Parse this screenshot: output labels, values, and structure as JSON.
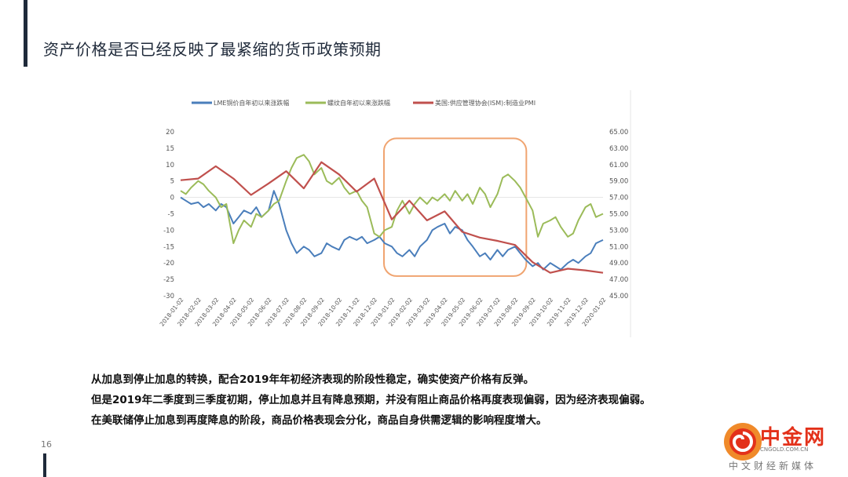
{
  "slide": {
    "title": "资产价格是否已经反映了最紧缩的货币政策预期",
    "page_number": "16",
    "bullets": [
      "从加息到停止加息的转换，配合2019年年初经济表现的阶段性稳定，确实使资产价格有反弹。",
      "但是2019年二季度到三季度初期，停止加息并且有降息预期，并没有阻止商品价格再度表现偏弱，因为经济表现偏弱。",
      "在美联储停止加息到再度降息的阶段，商品价格表现会分化，商品自身供需逻辑的影响程度增大。"
    ]
  },
  "logo": {
    "brand": "中金网",
    "url": "CNGOLD.COM.CN",
    "tagline": "中文财经新媒体",
    "color": "#e3311a"
  },
  "chart_data": {
    "type": "line",
    "legend": {
      "placement": "top",
      "items": [
        {
          "label": "LME铜价自年初以来涨跌幅",
          "color": "#4a7ebb"
        },
        {
          "label": "螺纹自年初以来涨跌幅",
          "color": "#9bbb59"
        },
        {
          "label": "美国:供应管理协会(ISM):制造业PMI",
          "color": "#c0504d"
        }
      ]
    },
    "y_left": {
      "min": -30,
      "max": 20,
      "ticks": [
        "20",
        "15",
        "10",
        "5",
        "0",
        "-5",
        "-10",
        "-15",
        "-20",
        "-25",
        "-30"
      ]
    },
    "y_right": {
      "min": 45,
      "max": 65,
      "ticks": [
        "65.00",
        "63.00",
        "61.00",
        "59.00",
        "57.00",
        "55.00",
        "53.00",
        "51.00",
        "49.00",
        "47.00",
        "45.00"
      ]
    },
    "x_categories": [
      "2018-01-02",
      "2018-02-02",
      "2018-03-02",
      "2018-04-02",
      "2018-05-02",
      "2018-06-02",
      "2018-07-02",
      "2018-08-02",
      "2018-09-02",
      "2018-10-02",
      "2018-11-02",
      "2018-12-02",
      "2019-01-02",
      "2019-02-02",
      "2019-03-02",
      "2019-04-02",
      "2019-05-02",
      "2019-06-02",
      "2019-07-02",
      "2019-08-02",
      "2019-09-02",
      "2019-10-02",
      "2019-11-02",
      "2019-12-02",
      "2020-01-02"
    ],
    "series": [
      {
        "name": "LME铜价自年初以来涨跌幅",
        "axis": "left",
        "color": "#4a7ebb",
        "x": [
          0,
          0.3,
          0.6,
          1.0,
          1.3,
          1.6,
          2.0,
          2.3,
          2.6,
          3.0,
          3.3,
          3.6,
          4.0,
          4.3,
          4.6,
          5.0,
          5.3,
          5.6,
          6.0,
          6.3,
          6.6,
          7.0,
          7.3,
          7.6,
          8.0,
          8.3,
          8.6,
          9.0,
          9.3,
          9.6,
          10.0,
          10.3,
          10.6,
          11.0,
          11.3,
          11.6,
          12.0,
          12.3,
          12.6,
          13.0,
          13.3,
          13.6,
          14.0,
          14.3,
          14.6,
          15.0,
          15.3,
          15.6,
          16.0,
          16.3,
          16.6,
          17.0,
          17.3,
          17.6,
          18.0,
          18.3,
          18.6,
          19.0,
          19.3,
          19.6,
          20.0,
          20.3,
          20.6,
          21.0,
          21.3,
          21.6,
          22.0,
          22.3,
          22.6,
          23.0,
          23.3,
          23.6,
          24.0
        ],
        "values": [
          0,
          -1,
          -2,
          -1.5,
          -3,
          -2,
          -4,
          -2,
          -3,
          -8,
          -6,
          -4,
          -5,
          -3,
          -6,
          -4,
          2,
          -2,
          -10,
          -14,
          -17,
          -15,
          -16,
          -18,
          -17,
          -14,
          -15,
          -16,
          -13,
          -12,
          -13,
          -12,
          -14,
          -13,
          -12,
          -14,
          -15,
          -17,
          -18,
          -16,
          -18,
          -15,
          -13,
          -10,
          -9,
          -8,
          -11,
          -9,
          -10,
          -13,
          -15,
          -18,
          -17,
          -19,
          -16,
          -18,
          -16,
          -15,
          -17,
          -19,
          -21,
          -20,
          -22,
          -20,
          -21,
          -22,
          -20,
          -19,
          -20,
          -18,
          -17,
          -14,
          -13
        ]
      },
      {
        "name": "螺纹自年初以来涨跌幅",
        "axis": "left",
        "color": "#9bbb59",
        "x": [
          0,
          0.3,
          0.6,
          1.0,
          1.3,
          1.6,
          2.0,
          2.3,
          2.6,
          3.0,
          3.3,
          3.6,
          4.0,
          4.3,
          4.6,
          5.0,
          5.3,
          5.6,
          6.0,
          6.3,
          6.6,
          7.0,
          7.3,
          7.6,
          8.0,
          8.3,
          8.6,
          9.0,
          9.3,
          9.6,
          10.0,
          10.3,
          10.6,
          11.0,
          11.3,
          11.6,
          12.0,
          12.3,
          12.6,
          13.0,
          13.3,
          13.6,
          14.0,
          14.3,
          14.6,
          15.0,
          15.3,
          15.6,
          16.0,
          16.3,
          16.6,
          17.0,
          17.3,
          17.6,
          18.0,
          18.3,
          18.6,
          19.0,
          19.3,
          19.6,
          20.0,
          20.3,
          20.6,
          21.0,
          21.3,
          21.6,
          22.0,
          22.3,
          22.6,
          23.0,
          23.3,
          23.6,
          24.0
        ],
        "values": [
          2,
          1,
          3,
          5,
          4,
          2,
          0,
          -3,
          -2,
          -14,
          -10,
          -7,
          -9,
          -5,
          -6,
          -4,
          -2,
          -1,
          5,
          9,
          12,
          13,
          11,
          7,
          9,
          5,
          4,
          6,
          3,
          1,
          2,
          -1,
          -3,
          -11,
          -12,
          -10,
          -9,
          -4,
          -1,
          -5,
          -2,
          0,
          -2,
          0,
          -1,
          1,
          -1,
          2,
          -1,
          1,
          -2,
          3,
          1,
          -3,
          1,
          6,
          7,
          5,
          3,
          0,
          -4,
          -12,
          -8,
          -7,
          -6,
          -9,
          -12,
          -11,
          -7,
          -3,
          -2,
          -6,
          -5
        ]
      },
      {
        "name": "美国:供应管理协会(ISM):制造业PMI",
        "axis": "right",
        "color": "#c0504d",
        "x": [
          0,
          1,
          2,
          3,
          4,
          5,
          6,
          7,
          8,
          9,
          10,
          11,
          12,
          13,
          14,
          15,
          16,
          17,
          18,
          19,
          20,
          21,
          22,
          23,
          24
        ],
        "values": [
          59.1,
          59.3,
          60.8,
          59.3,
          57.3,
          58.7,
          60.2,
          58.1,
          61.3,
          59.8,
          57.7,
          59.3,
          54.3,
          56.6,
          54.2,
          55.3,
          52.8,
          52.1,
          51.7,
          51.2,
          49.1,
          47.8,
          48.3,
          48.1,
          47.8
        ]
      }
    ],
    "highlight_box": {
      "from": "2019-01-02",
      "to": "2019-09-02",
      "y_top": 18,
      "y_bottom": -24,
      "color": "#f0a470"
    },
    "grid": false
  }
}
